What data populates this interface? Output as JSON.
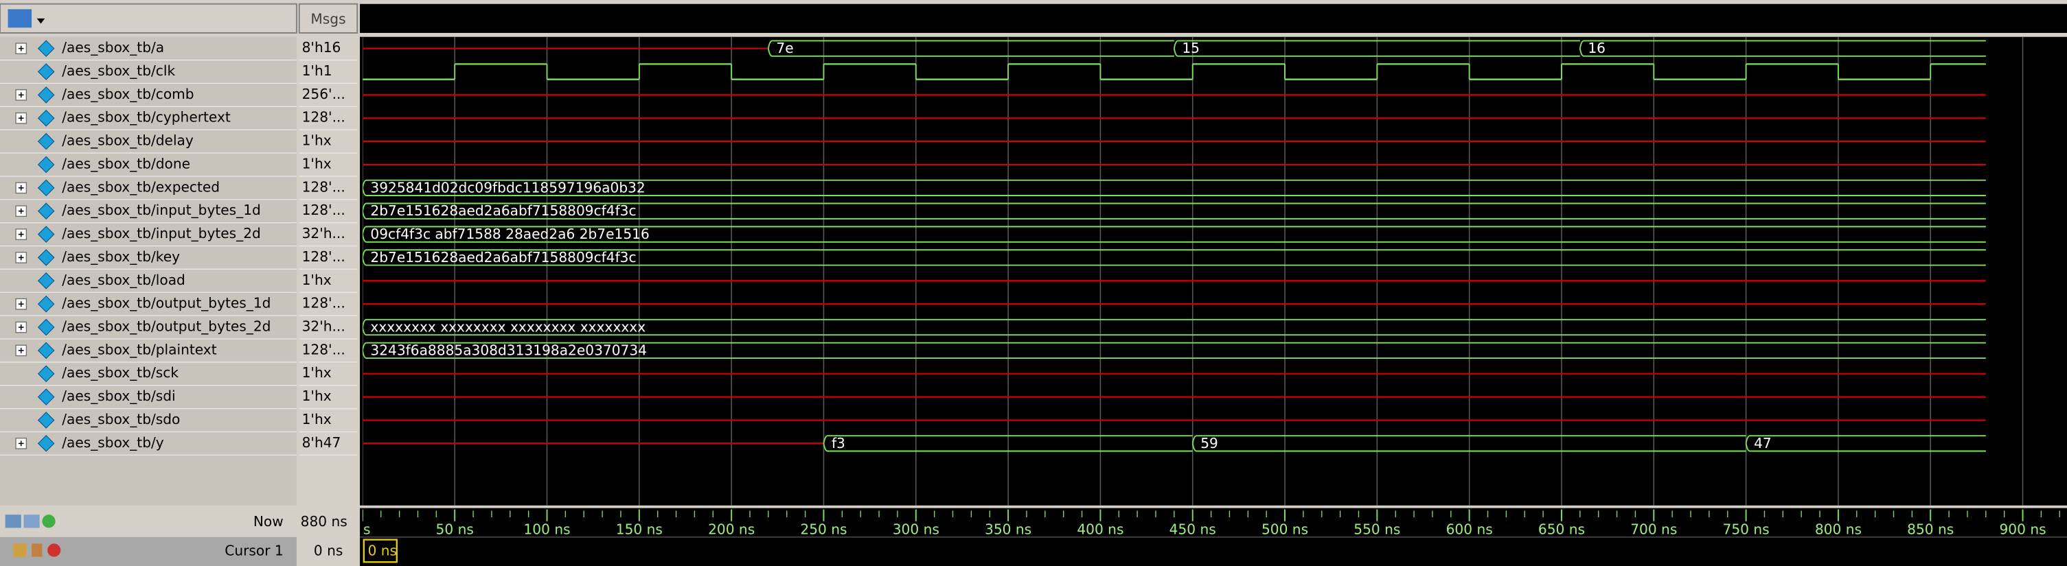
{
  "header": {
    "values_title": "Msgs"
  },
  "signals": [
    {
      "name": "/aes_sbox_tb/a",
      "value": "8'h16",
      "expandable": true,
      "wave": {
        "segments": [
          {
            "start": 0
          },
          {
            "start": 220,
            "label": "7e"
          },
          {
            "start": 440,
            "label": "15"
          },
          {
            "start": 660,
            "label": "16"
          }
        ]
      }
    },
    {
      "name": "/aes_sbox_tb/clk",
      "value": "1'h1",
      "expandable": false,
      "wave": {
        "initial_level": 0,
        "transitions": [
          50,
          100,
          150,
          200,
          250,
          300,
          350,
          400,
          450,
          500,
          550,
          600,
          650,
          700,
          750,
          800,
          850
        ]
      }
    },
    {
      "name": "/aes_sbox_tb/comb",
      "value": "256'...",
      "expandable": true,
      "wave": {
        "segments": [
          {
            "start": 0
          }
        ]
      }
    },
    {
      "name": "/aes_sbox_tb/cyphertext",
      "value": "128'...",
      "expandable": true,
      "wave": {
        "segments": [
          {
            "start": 0
          }
        ]
      }
    },
    {
      "name": "/aes_sbox_tb/delay",
      "value": "1'hx",
      "expandable": false,
      "wave": {
        "segments": [
          {
            "start": 0
          }
        ]
      }
    },
    {
      "name": "/aes_sbox_tb/done",
      "value": "1'hx",
      "expandable": false,
      "wave": {
        "segments": [
          {
            "start": 0
          }
        ]
      }
    },
    {
      "name": "/aes_sbox_tb/expected",
      "value": "128'...",
      "expandable": true,
      "wave": {
        "segments": [
          {
            "start": 0,
            "label": "3925841d02dc09fbdc118597196a0b32"
          }
        ]
      }
    },
    {
      "name": "/aes_sbox_tb/input_bytes_1d",
      "value": "128'...",
      "expandable": true,
      "wave": {
        "segments": [
          {
            "start": 0,
            "label": "2b7e151628aed2a6abf7158809cf4f3c"
          }
        ]
      }
    },
    {
      "name": "/aes_sbox_tb/input_bytes_2d",
      "value": "32'h...",
      "expandable": true,
      "wave": {
        "segments": [
          {
            "start": 0,
            "label": "09cf4f3c abf71588 28aed2a6 2b7e1516"
          }
        ]
      }
    },
    {
      "name": "/aes_sbox_tb/key",
      "value": "128'...",
      "expandable": true,
      "wave": {
        "segments": [
          {
            "start": 0,
            "label": "2b7e151628aed2a6abf7158809cf4f3c"
          }
        ]
      }
    },
    {
      "name": "/aes_sbox_tb/load",
      "value": "1'hx",
      "expandable": false,
      "wave": {
        "segments": [
          {
            "start": 0
          }
        ]
      }
    },
    {
      "name": "/aes_sbox_tb/output_bytes_1d",
      "value": "128'...",
      "expandable": true,
      "wave": {
        "segments": [
          {
            "start": 0
          }
        ]
      }
    },
    {
      "name": "/aes_sbox_tb/output_bytes_2d",
      "value": "32'h...",
      "expandable": true,
      "wave": {
        "segments": [
          {
            "start": 0,
            "label": "xxxxxxxx xxxxxxxx xxxxxxxx xxxxxxxx"
          }
        ]
      }
    },
    {
      "name": "/aes_sbox_tb/plaintext",
      "value": "128'...",
      "expandable": true,
      "wave": {
        "segments": [
          {
            "start": 0,
            "label": "3243f6a8885a308d313198a2e0370734"
          }
        ]
      }
    },
    {
      "name": "/aes_sbox_tb/sck",
      "value": "1'hx",
      "expandable": false,
      "wave": {
        "segments": [
          {
            "start": 0
          }
        ]
      }
    },
    {
      "name": "/aes_sbox_tb/sdi",
      "value": "1'hx",
      "expandable": false,
      "wave": {
        "segments": [
          {
            "start": 0
          }
        ]
      }
    },
    {
      "name": "/aes_sbox_tb/sdo",
      "value": "1'hx",
      "expandable": false,
      "wave": {
        "segments": [
          {
            "start": 0
          }
        ]
      }
    },
    {
      "name": "/aes_sbox_tb/y",
      "value": "8'h47",
      "expandable": true,
      "wave": {
        "segments": [
          {
            "start": 0
          },
          {
            "start": 250,
            "label": "f3"
          },
          {
            "start": 450,
            "label": "59"
          },
          {
            "start": 750,
            "label": "47"
          }
        ]
      }
    }
  ],
  "timeline": {
    "xlim": [
      0,
      924
    ],
    "end": 880,
    "grid": true,
    "minor_step": 10,
    "xticks": [
      {
        "value": 0,
        "label": "ns"
      },
      {
        "value": 50,
        "label": "50 ns"
      },
      {
        "value": 100,
        "label": "100 ns"
      },
      {
        "value": 150,
        "label": "150 ns"
      },
      {
        "value": 200,
        "label": "200 ns"
      },
      {
        "value": 250,
        "label": "250 ns"
      },
      {
        "value": 300,
        "label": "300 ns"
      },
      {
        "value": 350,
        "label": "350 ns"
      },
      {
        "value": 400,
        "label": "400 ns"
      },
      {
        "value": 450,
        "label": "450 ns"
      },
      {
        "value": 500,
        "label": "500 ns"
      },
      {
        "value": 550,
        "label": "550 ns"
      },
      {
        "value": 600,
        "label": "600 ns"
      },
      {
        "value": 650,
        "label": "650 ns"
      },
      {
        "value": 700,
        "label": "700 ns"
      },
      {
        "value": 750,
        "label": "750 ns"
      },
      {
        "value": 800,
        "label": "800 ns"
      },
      {
        "value": 850,
        "label": "850 ns"
      },
      {
        "value": 900,
        "label": "900 ns"
      }
    ],
    "now_label": "Now",
    "now_value": "880 ns",
    "cursor_name": "Cursor 1",
    "cursor_value": "0 ns",
    "cursor_time": 0,
    "cursor_box_label": "0 ns"
  }
}
